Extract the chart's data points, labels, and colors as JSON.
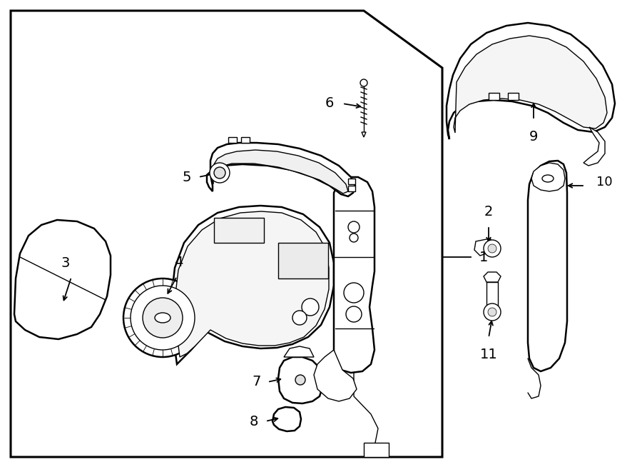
{
  "bg_color": "#ffffff",
  "line_color": "#000000",
  "lw_main": 1.8,
  "lw_thin": 1.0,
  "lw_thick": 2.2,
  "figsize": [
    9.0,
    6.61
  ],
  "dpi": 100,
  "xlim": [
    0,
    900
  ],
  "ylim": [
    0,
    661
  ]
}
